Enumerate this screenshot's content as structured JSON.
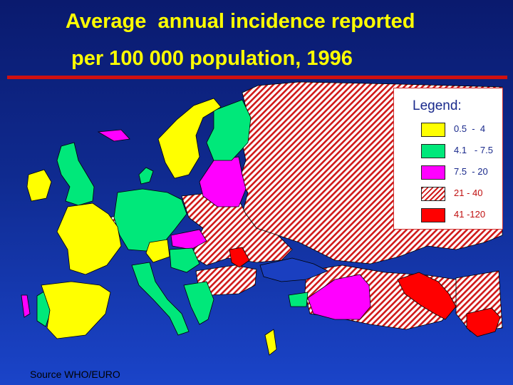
{
  "title": {
    "line1": "Average  annual incidence reported",
    "line2": "per 100 000 population, 1996"
  },
  "legend": {
    "title": "Legend:",
    "items": [
      {
        "label": "0.5  -  4",
        "color": "#ffff00",
        "pattern": "solid",
        "label_color": "#1a2a8c"
      },
      {
        "label": "4.1   - 7.5",
        "color": "#00e87a",
        "pattern": "solid",
        "label_color": "#1a2a8c"
      },
      {
        "label": "7.5  - 20",
        "color": "#ff00ff",
        "pattern": "solid",
        "label_color": "#1a2a8c"
      },
      {
        "label": "21 - 40",
        "color": "#d01818",
        "pattern": "hatched",
        "label_color": "#c01010"
      },
      {
        "label": "41 -120",
        "color": "#ff0000",
        "pattern": "solid",
        "label_color": "#c01010"
      }
    ]
  },
  "source": "Source WHO/EURO",
  "colors": {
    "background": "#0f2a8f",
    "title": "#ffff00",
    "rule": "#d01010"
  }
}
